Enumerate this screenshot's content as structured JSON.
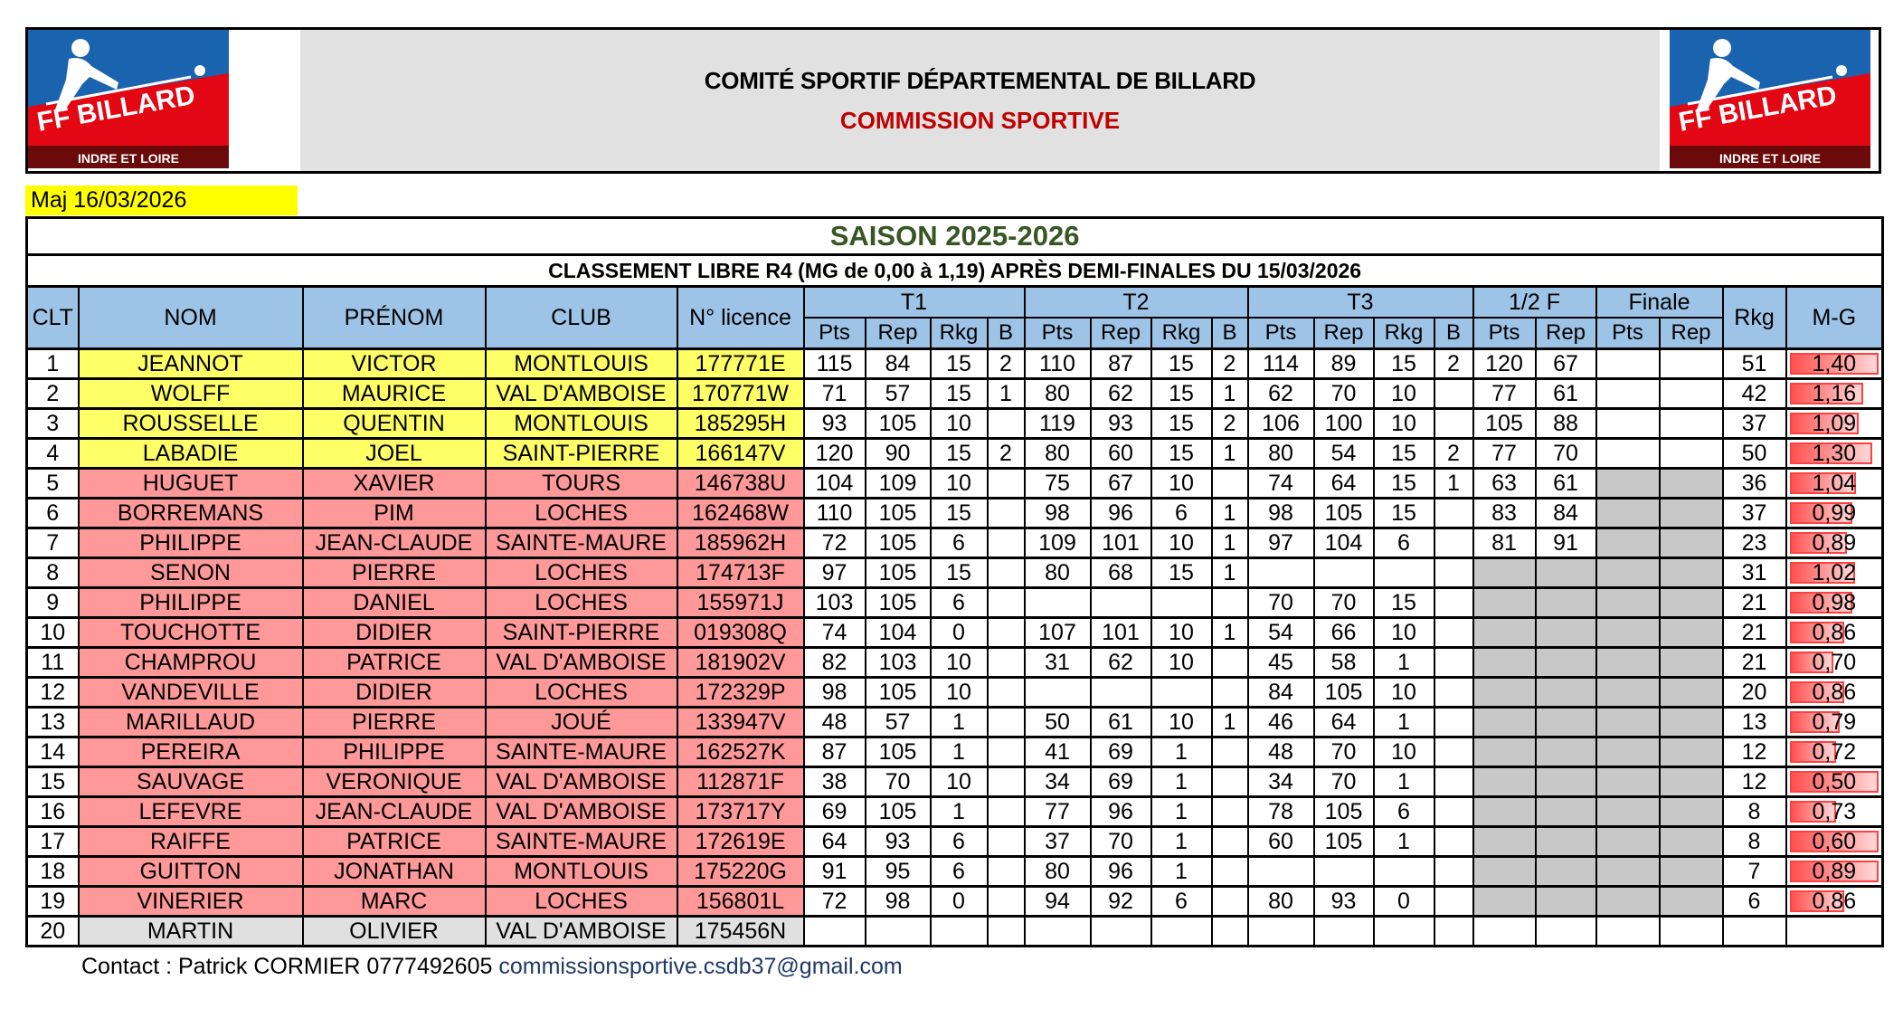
{
  "header": {
    "title": "COMITÉ SPORTIF DÉPARTEMENTAL DE BILLARD",
    "subtitle": "COMMISSION SPORTIVE",
    "logo": {
      "brand": "FF BILLARD",
      "region": "INDRE ET LOIRE"
    }
  },
  "update_label": "Maj 16/03/2026",
  "season": "SAISON 2025-2026",
  "ranking_title": "CLASSEMENT LIBRE R4 (MG de 0,00 à 1,19) APRÈS DEMI-FINALES DU 15/03/2026",
  "columns": {
    "clt": "CLT",
    "nom": "NOM",
    "prenom": "PRÉNOM",
    "club": "CLUB",
    "licence": "N° licence",
    "t1": "T1",
    "t2": "T2",
    "t3": "T3",
    "semi": "1/2 F",
    "finale": "Finale",
    "rkg": "Rkg",
    "mg": "M-G",
    "sub": {
      "pts": "Pts",
      "rep": "Rep",
      "rkg": "Rkg",
      "b": "B"
    }
  },
  "colors": {
    "qualified": "#ffff66",
    "eliminated": "#ff9999",
    "unranked": "#e0e0e0",
    "not_applicable": "#c8c8c8",
    "season": "#375623",
    "subtitle": "#c00000",
    "header_blue": "#9dc3e6"
  },
  "rows": [
    {
      "clt": "1",
      "nom": "JEANNOT",
      "prenom": "VICTOR",
      "club": "MONTLOUIS",
      "licence": "177771E",
      "t1": [
        "115",
        "84",
        "15",
        "2"
      ],
      "t2": [
        "110",
        "87",
        "15",
        "2"
      ],
      "t3": [
        "114",
        "89",
        "15",
        "2"
      ],
      "semi": [
        "120",
        "67"
      ],
      "finale": [
        "",
        ""
      ],
      "rkg": "51",
      "mg": "1,40",
      "mg_bar": 1.0,
      "status": "qualified",
      "semi_na": false,
      "finale_na": false
    },
    {
      "clt": "2",
      "nom": "WOLFF",
      "prenom": "MAURICE",
      "club": "VAL D'AMBOISE",
      "licence": "170771W",
      "t1": [
        "71",
        "57",
        "15",
        "1"
      ],
      "t2": [
        "80",
        "62",
        "15",
        "1"
      ],
      "t3": [
        "62",
        "70",
        "10",
        ""
      ],
      "semi": [
        "77",
        "61"
      ],
      "finale": [
        "",
        ""
      ],
      "rkg": "42",
      "mg": "1,16",
      "mg_bar": 0.83,
      "status": "qualified",
      "semi_na": false,
      "finale_na": false
    },
    {
      "clt": "3",
      "nom": "ROUSSELLE",
      "prenom": "QUENTIN",
      "club": "MONTLOUIS",
      "licence": "185295H",
      "t1": [
        "93",
        "105",
        "10",
        ""
      ],
      "t2": [
        "119",
        "93",
        "15",
        "2"
      ],
      "t3": [
        "106",
        "100",
        "10",
        ""
      ],
      "semi": [
        "105",
        "88"
      ],
      "finale": [
        "",
        ""
      ],
      "rkg": "37",
      "mg": "1,09",
      "mg_bar": 0.77,
      "status": "qualified",
      "semi_na": false,
      "finale_na": false
    },
    {
      "clt": "4",
      "nom": "LABADIE",
      "prenom": "JOEL",
      "club": "SAINT-PIERRE",
      "licence": "166147V",
      "t1": [
        "120",
        "90",
        "15",
        "2"
      ],
      "t2": [
        "80",
        "60",
        "15",
        "1"
      ],
      "t3": [
        "80",
        "54",
        "15",
        "2"
      ],
      "semi": [
        "77",
        "70"
      ],
      "finale": [
        "",
        ""
      ],
      "rkg": "50",
      "mg": "1,30",
      "mg_bar": 0.93,
      "status": "qualified",
      "semi_na": false,
      "finale_na": false
    },
    {
      "clt": "5",
      "nom": "HUGUET",
      "prenom": "XAVIER",
      "club": "TOURS",
      "licence": "146738U",
      "t1": [
        "104",
        "109",
        "10",
        ""
      ],
      "t2": [
        "75",
        "67",
        "10",
        ""
      ],
      "t3": [
        "74",
        "64",
        "15",
        "1"
      ],
      "semi": [
        "63",
        "61"
      ],
      "finale": [
        "",
        ""
      ],
      "rkg": "36",
      "mg": "1,04",
      "mg_bar": 0.74,
      "status": "eliminated",
      "semi_na": false,
      "finale_na": true
    },
    {
      "clt": "6",
      "nom": "BORREMANS",
      "prenom": "PIM",
      "club": "LOCHES",
      "licence": "162468W",
      "t1": [
        "110",
        "105",
        "15",
        ""
      ],
      "t2": [
        "98",
        "96",
        "6",
        "1"
      ],
      "t3": [
        "98",
        "105",
        "15",
        ""
      ],
      "semi": [
        "83",
        "84"
      ],
      "finale": [
        "",
        ""
      ],
      "rkg": "37",
      "mg": "0,99",
      "mg_bar": 0.7,
      "status": "eliminated",
      "semi_na": false,
      "finale_na": true
    },
    {
      "clt": "7",
      "nom": "PHILIPPE",
      "prenom": "JEAN-CLAUDE",
      "club": "SAINTE-MAURE",
      "licence": "185962H",
      "t1": [
        "72",
        "105",
        "6",
        ""
      ],
      "t2": [
        "109",
        "101",
        "10",
        "1"
      ],
      "t3": [
        "97",
        "104",
        "6",
        ""
      ],
      "semi": [
        "81",
        "91"
      ],
      "finale": [
        "",
        ""
      ],
      "rkg": "23",
      "mg": "0,89",
      "mg_bar": 0.64,
      "status": "eliminated",
      "semi_na": false,
      "finale_na": true
    },
    {
      "clt": "8",
      "nom": "SENON",
      "prenom": "PIERRE",
      "club": "LOCHES",
      "licence": "174713F",
      "t1": [
        "97",
        "105",
        "15",
        ""
      ],
      "t2": [
        "80",
        "68",
        "15",
        "1"
      ],
      "t3": [
        "",
        "",
        "",
        ""
      ],
      "semi": [
        "",
        ""
      ],
      "finale": [
        "",
        ""
      ],
      "rkg": "31",
      "mg": "1,02",
      "mg_bar": 0.73,
      "status": "eliminated",
      "semi_na": true,
      "finale_na": true
    },
    {
      "clt": "9",
      "nom": "PHILIPPE",
      "prenom": "DANIEL",
      "club": "LOCHES",
      "licence": "155971J",
      "t1": [
        "103",
        "105",
        "6",
        ""
      ],
      "t2": [
        "",
        "",
        "",
        ""
      ],
      "t3": [
        "70",
        "70",
        "15",
        ""
      ],
      "semi": [
        "",
        ""
      ],
      "finale": [
        "",
        ""
      ],
      "rkg": "21",
      "mg": "0,98",
      "mg_bar": 0.7,
      "status": "eliminated",
      "semi_na": true,
      "finale_na": true
    },
    {
      "clt": "10",
      "nom": "TOUCHOTTE",
      "prenom": "DIDIER",
      "club": "SAINT-PIERRE",
      "licence": "019308Q",
      "t1": [
        "74",
        "104",
        "0",
        ""
      ],
      "t2": [
        "107",
        "101",
        "10",
        "1"
      ],
      "t3": [
        "54",
        "66",
        "10",
        ""
      ],
      "semi": [
        "",
        ""
      ],
      "finale": [
        "",
        ""
      ],
      "rkg": "21",
      "mg": "0,86",
      "mg_bar": 0.61,
      "status": "eliminated",
      "semi_na": true,
      "finale_na": true
    },
    {
      "clt": "11",
      "nom": "CHAMPROU",
      "prenom": "PATRICE",
      "club": "VAL D'AMBOISE",
      "licence": "181902V",
      "t1": [
        "82",
        "103",
        "10",
        ""
      ],
      "t2": [
        "31",
        "62",
        "10",
        ""
      ],
      "t3": [
        "45",
        "58",
        "1",
        ""
      ],
      "semi": [
        "",
        ""
      ],
      "finale": [
        "",
        ""
      ],
      "rkg": "21",
      "mg": "0,70",
      "mg_bar": 0.49,
      "status": "eliminated",
      "semi_na": true,
      "finale_na": true
    },
    {
      "clt": "12",
      "nom": "VANDEVILLE",
      "prenom": "DIDIER",
      "club": "LOCHES",
      "licence": "172329P",
      "t1": [
        "98",
        "105",
        "10",
        ""
      ],
      "t2": [
        "",
        "",
        "",
        ""
      ],
      "t3": [
        "84",
        "105",
        "10",
        ""
      ],
      "semi": [
        "",
        ""
      ],
      "finale": [
        "",
        ""
      ],
      "rkg": "20",
      "mg": "0,86",
      "mg_bar": 0.61,
      "status": "eliminated",
      "semi_na": true,
      "finale_na": true
    },
    {
      "clt": "13",
      "nom": "MARILLAUD",
      "prenom": "PIERRE",
      "club": "JOUÉ",
      "licence": "133947V",
      "t1": [
        "48",
        "57",
        "1",
        ""
      ],
      "t2": [
        "50",
        "61",
        "10",
        "1"
      ],
      "t3": [
        "46",
        "64",
        "1",
        ""
      ],
      "semi": [
        "",
        ""
      ],
      "finale": [
        "",
        ""
      ],
      "rkg": "13",
      "mg": "0,79",
      "mg_bar": 0.56,
      "status": "eliminated",
      "semi_na": true,
      "finale_na": true
    },
    {
      "clt": "14",
      "nom": "PEREIRA",
      "prenom": "PHILIPPE",
      "club": "SAINTE-MAURE",
      "licence": "162527K",
      "t1": [
        "87",
        "105",
        "1",
        ""
      ],
      "t2": [
        "41",
        "69",
        "1",
        ""
      ],
      "t3": [
        "48",
        "70",
        "10",
        ""
      ],
      "semi": [
        "",
        ""
      ],
      "finale": [
        "",
        ""
      ],
      "rkg": "12",
      "mg": "0,72",
      "mg_bar": 0.52,
      "status": "eliminated",
      "semi_na": true,
      "finale_na": true
    },
    {
      "clt": "15",
      "nom": "SAUVAGE",
      "prenom": "VERONIQUE",
      "club": "VAL D'AMBOISE",
      "licence": "112871F",
      "t1": [
        "38",
        "70",
        "10",
        ""
      ],
      "t2": [
        "34",
        "69",
        "1",
        ""
      ],
      "t3": [
        "34",
        "70",
        "1",
        ""
      ],
      "semi": [
        "",
        ""
      ],
      "finale": [
        "",
        ""
      ],
      "rkg": "12",
      "mg": "0,50",
      "mg_bar": 1.0,
      "status": "eliminated",
      "semi_na": true,
      "finale_na": true
    },
    {
      "clt": "16",
      "nom": "LEFEVRE",
      "prenom": "JEAN-CLAUDE",
      "club": "VAL D'AMBOISE",
      "licence": "173717Y",
      "t1": [
        "69",
        "105",
        "1",
        ""
      ],
      "t2": [
        "77",
        "96",
        "1",
        ""
      ],
      "t3": [
        "78",
        "105",
        "6",
        ""
      ],
      "semi": [
        "",
        ""
      ],
      "finale": [
        "",
        ""
      ],
      "rkg": "8",
      "mg": "0,73",
      "mg_bar": 0.52,
      "status": "eliminated",
      "semi_na": true,
      "finale_na": true
    },
    {
      "clt": "17",
      "nom": "RAIFFE",
      "prenom": "PATRICE",
      "club": "SAINTE-MAURE",
      "licence": "172619E",
      "t1": [
        "64",
        "93",
        "6",
        ""
      ],
      "t2": [
        "37",
        "70",
        "1",
        ""
      ],
      "t3": [
        "60",
        "105",
        "1",
        ""
      ],
      "semi": [
        "",
        ""
      ],
      "finale": [
        "",
        ""
      ],
      "rkg": "8",
      "mg": "0,60",
      "mg_bar": 1.0,
      "status": "eliminated",
      "semi_na": true,
      "finale_na": true
    },
    {
      "clt": "18",
      "nom": "GUITTON",
      "prenom": "JONATHAN",
      "club": "MONTLOUIS",
      "licence": "175220G",
      "t1": [
        "91",
        "95",
        "6",
        ""
      ],
      "t2": [
        "80",
        "96",
        "1",
        ""
      ],
      "t3": [
        "",
        "",
        "",
        ""
      ],
      "semi": [
        "",
        ""
      ],
      "finale": [
        "",
        ""
      ],
      "rkg": "7",
      "mg": "0,89",
      "mg_bar": 1.0,
      "status": "eliminated",
      "semi_na": true,
      "finale_na": true
    },
    {
      "clt": "19",
      "nom": "VINERIER",
      "prenom": "MARC",
      "club": "LOCHES",
      "licence": "156801L",
      "t1": [
        "72",
        "98",
        "0",
        ""
      ],
      "t2": [
        "94",
        "92",
        "6",
        ""
      ],
      "t3": [
        "80",
        "93",
        "0",
        ""
      ],
      "semi": [
        "",
        ""
      ],
      "finale": [
        "",
        ""
      ],
      "rkg": "6",
      "mg": "0,86",
      "mg_bar": 0.61,
      "status": "eliminated",
      "semi_na": true,
      "finale_na": true
    },
    {
      "clt": "20",
      "nom": "MARTIN",
      "prenom": "OLIVIER",
      "club": "VAL D'AMBOISE",
      "licence": "175456N",
      "t1": [
        "",
        "",
        "",
        ""
      ],
      "t2": [
        "",
        "",
        "",
        ""
      ],
      "t3": [
        "",
        "",
        "",
        ""
      ],
      "semi": [
        "",
        ""
      ],
      "finale": [
        "",
        ""
      ],
      "rkg": "",
      "mg": "",
      "mg_bar": 0,
      "status": "unranked",
      "semi_na": false,
      "finale_na": false
    }
  ],
  "footer": {
    "contact": "Contact : Patrick CORMIER 0777492605",
    "email": "commissionsportive.csdb37@gmail.com"
  }
}
